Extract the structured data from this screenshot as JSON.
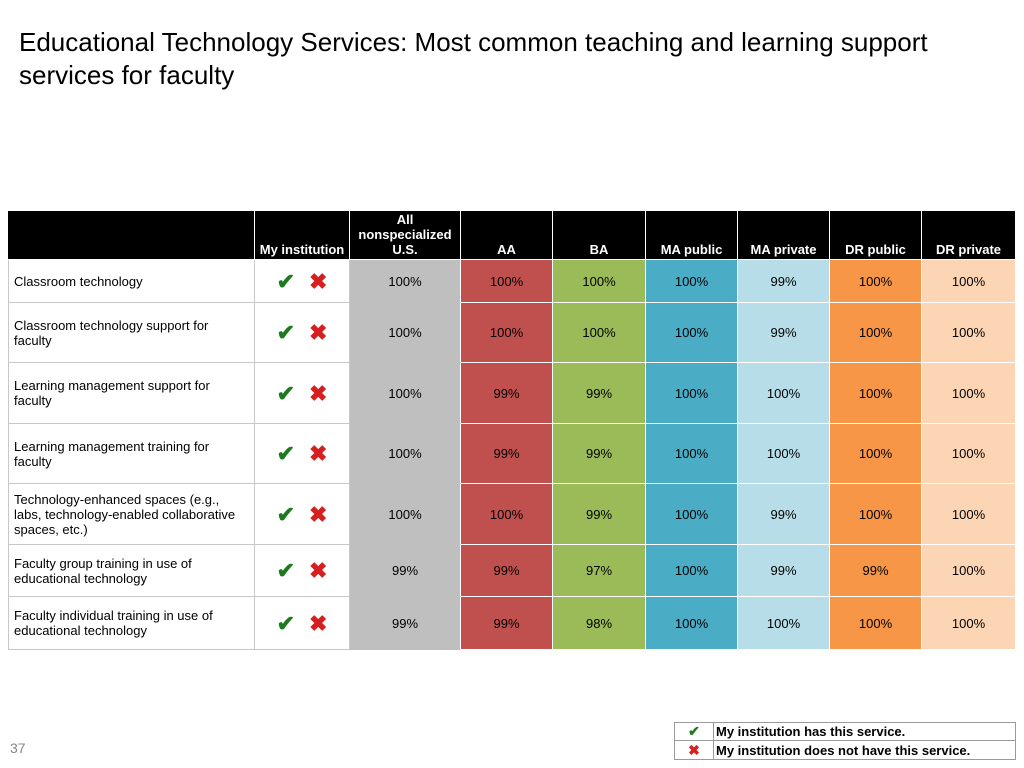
{
  "title": "Educational Technology Services: Most common teaching and learning support services for faculty",
  "colors": {
    "header_bg": "#000000",
    "all_us": "#bfbfbf",
    "AA": "#c0504d",
    "BA": "#9bbb59",
    "MA public": "#4bacc6",
    "MA private": "#b7dee8",
    "DR public": "#f79646",
    "DR private": "#fcd5b4",
    "check": "#1e7a1e",
    "cross": "#d62020"
  },
  "chart_data": {
    "type": "table",
    "columns": [
      "",
      "My institution",
      "All nonspecialized U.S.",
      "AA",
      "BA",
      "MA public",
      "MA private",
      "DR public",
      "DR private"
    ],
    "rows": [
      {
        "label": "Classroom technology",
        "values": [
          "100%",
          "100%",
          "100%",
          "100%",
          "99%",
          "100%",
          "100%"
        ]
      },
      {
        "label": "Classroom technology support for faculty",
        "values": [
          "100%",
          "100%",
          "100%",
          "100%",
          "99%",
          "100%",
          "100%"
        ]
      },
      {
        "label": "Learning management support for faculty",
        "values": [
          "100%",
          "99%",
          "99%",
          "100%",
          "100%",
          "100%",
          "100%"
        ]
      },
      {
        "label": "Learning management training for faculty",
        "values": [
          "100%",
          "99%",
          "99%",
          "100%",
          "100%",
          "100%",
          "100%"
        ]
      },
      {
        "label": "Technology-enhanced spaces (e.g., labs, technology-enabled collaborative spaces, etc.)",
        "values": [
          "100%",
          "100%",
          "99%",
          "100%",
          "99%",
          "100%",
          "100%"
        ]
      },
      {
        "label": "Faculty group training in use of educational technology",
        "values": [
          "99%",
          "99%",
          "97%",
          "100%",
          "99%",
          "99%",
          "100%"
        ]
      },
      {
        "label": "Faculty individual training in use of educational technology",
        "values": [
          "99%",
          "99%",
          "98%",
          "100%",
          "100%",
          "100%",
          "100%"
        ]
      }
    ]
  },
  "marks": {
    "check": "✔",
    "cross": "✖"
  },
  "legend": {
    "has_service": "My institution has this service.",
    "no_service": "My institution does not have this service."
  },
  "page_number": "37"
}
